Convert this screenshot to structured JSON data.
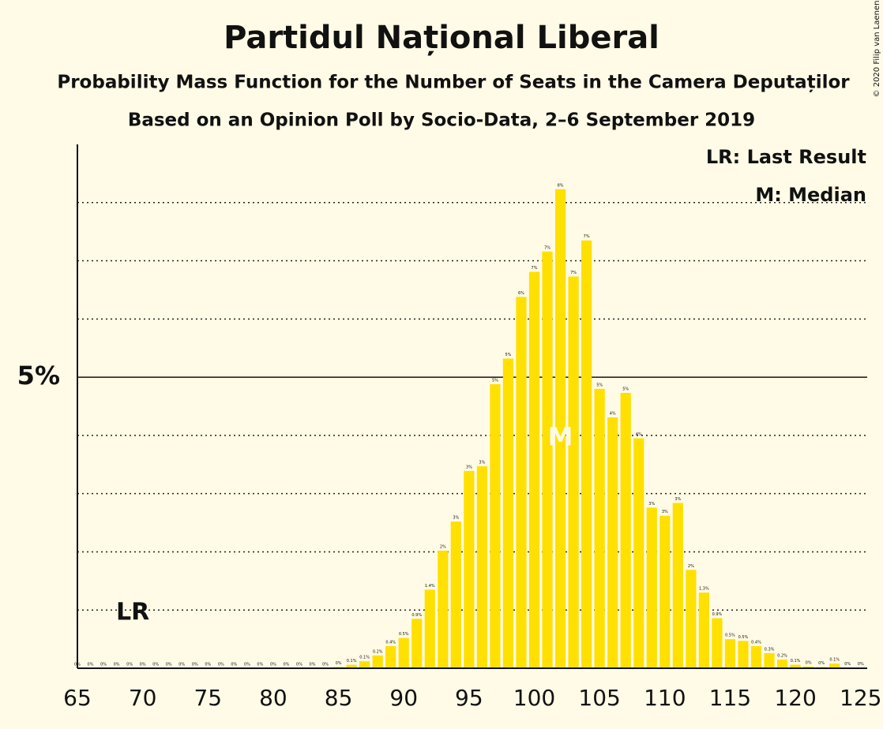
{
  "chart_data": {
    "type": "bar",
    "title": "Partidul Național Liberal",
    "subtitle": "Probability Mass Function for the Number of Seats in the Camera Deputaților",
    "subtitle2": "Based on an Opinion Poll by Socio-Data, 2–6 September 2019",
    "credit": "© 2020 Filip van Laenen",
    "legend": [
      "LR: Last Result",
      "M: Median"
    ],
    "annotations": [
      {
        "label": "LR",
        "x": 69
      },
      {
        "label": "M",
        "x": 102
      }
    ],
    "color": "#ffe000",
    "x": [
      65,
      66,
      67,
      68,
      69,
      70,
      71,
      72,
      73,
      74,
      75,
      76,
      77,
      78,
      79,
      80,
      81,
      82,
      83,
      84,
      85,
      86,
      87,
      88,
      89,
      90,
      91,
      92,
      93,
      94,
      95,
      96,
      97,
      98,
      99,
      100,
      101,
      102,
      103,
      104,
      105,
      106,
      107,
      108,
      109,
      110,
      111,
      112,
      113,
      114,
      115,
      116,
      117,
      118,
      119,
      120,
      121,
      122,
      123,
      124,
      125
    ],
    "values": [
      0,
      0,
      0,
      0,
      0,
      0,
      0,
      0,
      0,
      0,
      0,
      0,
      0,
      0,
      0,
      0,
      0,
      0,
      0,
      0,
      0.02,
      0.06,
      0.12,
      0.22,
      0.38,
      0.52,
      0.85,
      1.35,
      2.02,
      2.52,
      3.39,
      3.47,
      4.88,
      5.32,
      6.38,
      6.81,
      7.16,
      8.23,
      6.73,
      7.35,
      4.8,
      4.31,
      4.73,
      3.95,
      2.76,
      2.62,
      2.84,
      1.69,
      1.3,
      0.86,
      0.5,
      0.47,
      0.38,
      0.26,
      0.15,
      0.06,
      0.03,
      0.02,
      0.08,
      0.01,
      0.01
    ],
    "value_labels": [
      "0%",
      "0%",
      "0%",
      "0%",
      "0%",
      "0%",
      "0%",
      "0%",
      "0%",
      "0%",
      "0%",
      "0%",
      "0%",
      "0%",
      "0%",
      "0%",
      "0%",
      "0%",
      "0%",
      "0%",
      "0%",
      "0.1%",
      "0.1%",
      "0.2%",
      "0.4%",
      "0.5%",
      "0.9%",
      "1.4%",
      "2%",
      "3%",
      "3%",
      "3%",
      "5%",
      "5%",
      "6%",
      "7%",
      "7%",
      "8%",
      "7%",
      "7%",
      "5%",
      "4%",
      "5%",
      "4%",
      "3%",
      "3%",
      "3%",
      "2%",
      "1.3%",
      "0.9%",
      "0.5%",
      "0.5%",
      "0.4%",
      "0.3%",
      "0.2%",
      "0.1%",
      "0%",
      "0%",
      "0.1%",
      "0%",
      "0%"
    ],
    "xlim": [
      65,
      125.5
    ],
    "xticks": [
      65,
      70,
      75,
      80,
      85,
      90,
      95,
      100,
      105,
      110,
      115,
      120,
      125
    ],
    "ylim": [
      0,
      9
    ],
    "yticks": [
      {
        "value": 5,
        "label": "5%"
      }
    ],
    "ygrid": [
      1,
      2,
      3,
      4,
      6,
      7,
      8
    ]
  }
}
